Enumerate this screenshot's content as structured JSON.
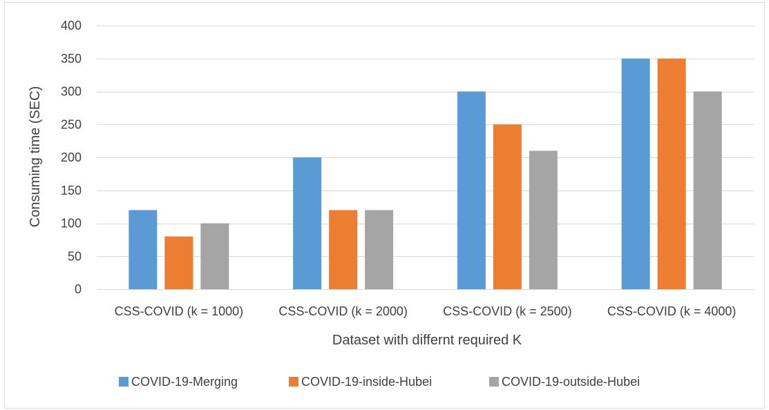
{
  "chart_data": {
    "type": "bar",
    "title": "",
    "xlabel": "Dataset with differnt required K",
    "ylabel": "Consuming time (SEC)",
    "ylim": [
      0,
      400
    ],
    "yticks": [
      0,
      50,
      100,
      150,
      200,
      250,
      300,
      350,
      400
    ],
    "grid": true,
    "legend_position": "bottom",
    "categories": [
      "CSS-COVID (k = 1000)",
      "CSS-COVID (k = 2000)",
      "CSS-COVID (k = 2500)",
      "CSS-COVID (k = 4000)"
    ],
    "series": [
      {
        "name": "COVID-19-Merging",
        "color": "#5B9BD5",
        "values": [
          120,
          200,
          300,
          350
        ]
      },
      {
        "name": "COVID-19-inside-Hubei",
        "color": "#ED7D31",
        "values": [
          80,
          120,
          250,
          350
        ]
      },
      {
        "name": "COVID-19-outside-Hubei",
        "color": "#A5A5A5",
        "values": [
          100,
          120,
          210,
          300
        ]
      }
    ],
    "gridline_color": "#D9D9D9",
    "text_color": "#404040",
    "frame_color": "#D9D9D9"
  }
}
